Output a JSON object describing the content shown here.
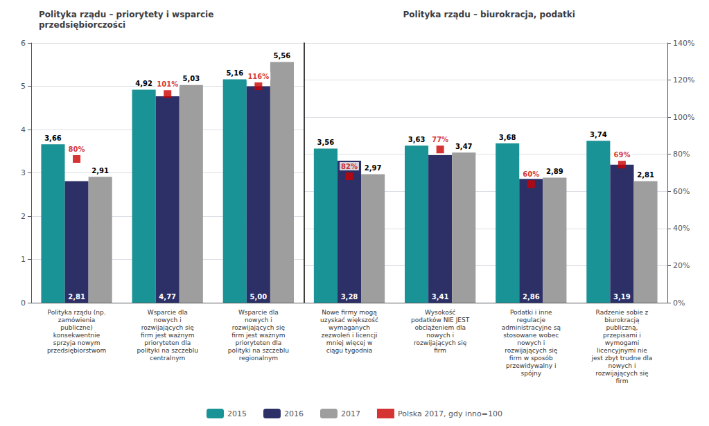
{
  "chart_data": [
    {
      "type": "bar",
      "title": "Polityka rządu – priorytety i wsparcie\nprzedsiębiorczości",
      "categories": [
        "Polityka rządu (np.\nzamówienia\npubliczne)\nkonsekwentnie\nsprzyja nowym\nprzedsiębiorstwom",
        "Wsparcie dla\nnowych i\nrozwijających się\nfirm jest ważnym\nprioryteten dla\npolityki na szczeblu\ncentralnym",
        "Wsparcie dla\nnowych i\nrozwijających się\nfirm jest ważnym\nprioryteten dla\npolityki na szczeblu\nregionalnym"
      ],
      "series": [
        {
          "name": "2015",
          "color": "#1a9396",
          "values": [
            3.66,
            4.92,
            5.16
          ],
          "value_labels": [
            "3,66",
            "4,92",
            "5,16"
          ]
        },
        {
          "name": "2016",
          "color": "#2d3066",
          "values": [
            2.81,
            4.77,
            5.0
          ],
          "value_labels": [
            "2,81",
            "4,77",
            "5,00"
          ]
        },
        {
          "name": "2017",
          "color": "#9e9e9e",
          "values": [
            2.91,
            5.03,
            5.56
          ],
          "value_labels": [
            "2,91",
            "5,03",
            "5,56"
          ]
        },
        {
          "name": "Polska 2017, gdy inno=100",
          "type": "scatter",
          "marker": "square",
          "color": "#cc0000",
          "values": [
            3.32,
            4.82,
            5.0
          ],
          "annotations": [
            "80%",
            "101%",
            "116%"
          ]
        }
      ],
      "ylim": [
        0,
        6
      ],
      "yticks": [
        0,
        1,
        2,
        3,
        4,
        5,
        6
      ],
      "grid": true,
      "data_labels": true,
      "legend": "bottom"
    },
    {
      "type": "bar",
      "title": "Polityka rządu – biurokracja, podatki",
      "categories": [
        "Nowe firmy mogą\nuzyskać większość\nwymaganych\nzezwoleń i licencji\nmniej więcej w\nciągu tygodnia",
        "Wysokość\npodatków NIE JEST\nobciążeniem dla\nnowych i\nrozwijających się\nfirm",
        "Podatki i inne\nregulacje\nadministracyjne są\nstosowane wobec\nnowych i\nrozwijających się\nfirm w sposób\nprzewidywalny i\nspójny",
        "Radzenie sobie z\nbiurokracją\npubliczną,\nprzepisami i\nwymogami\nlicencyjnymi nie\njest zbyt trudne dla\nnowych i\nrozwijających się\nfirm"
      ],
      "series": [
        {
          "name": "2015",
          "color": "#1a9396",
          "values": [
            3.56,
            3.63,
            3.68,
            3.74
          ],
          "value_labels": [
            "3,56",
            "3,63",
            "3,68",
            "3,74"
          ]
        },
        {
          "name": "2016",
          "color": "#2d3066",
          "values": [
            3.28,
            3.41,
            2.86,
            3.19
          ],
          "value_labels": [
            "3,28",
            "3,41",
            "2,86",
            "3,19"
          ]
        },
        {
          "name": "2017",
          "color": "#9e9e9e",
          "values": [
            2.97,
            3.47,
            2.89,
            2.81
          ],
          "value_labels": [
            "2,97",
            "3,47",
            "2,89",
            "2,81"
          ]
        },
        {
          "name": "Polska 2017, gdy inno=100",
          "type": "scatter",
          "marker": "square",
          "color": "#cc0000",
          "values": [
            2.92,
            3.54,
            2.74,
            3.19
          ],
          "annotations": [
            "82%",
            "77%",
            "60%",
            "69%"
          ]
        }
      ],
      "ylim": [
        0,
        6
      ],
      "y2lim": [
        0,
        140
      ],
      "y2ticks": [
        {
          "value": 0,
          "label": "0%"
        },
        {
          "value": 20,
          "label": "20%"
        },
        {
          "value": 40,
          "label": "40%"
        },
        {
          "value": 60,
          "label": "60%"
        },
        {
          "value": 80,
          "label": "80%"
        },
        {
          "value": 100,
          "label": "100%"
        },
        {
          "value": 120,
          "label": "120%"
        },
        {
          "value": 140,
          "label": "140%"
        }
      ],
      "grid": true,
      "data_labels": true,
      "legend": "bottom"
    }
  ]
}
